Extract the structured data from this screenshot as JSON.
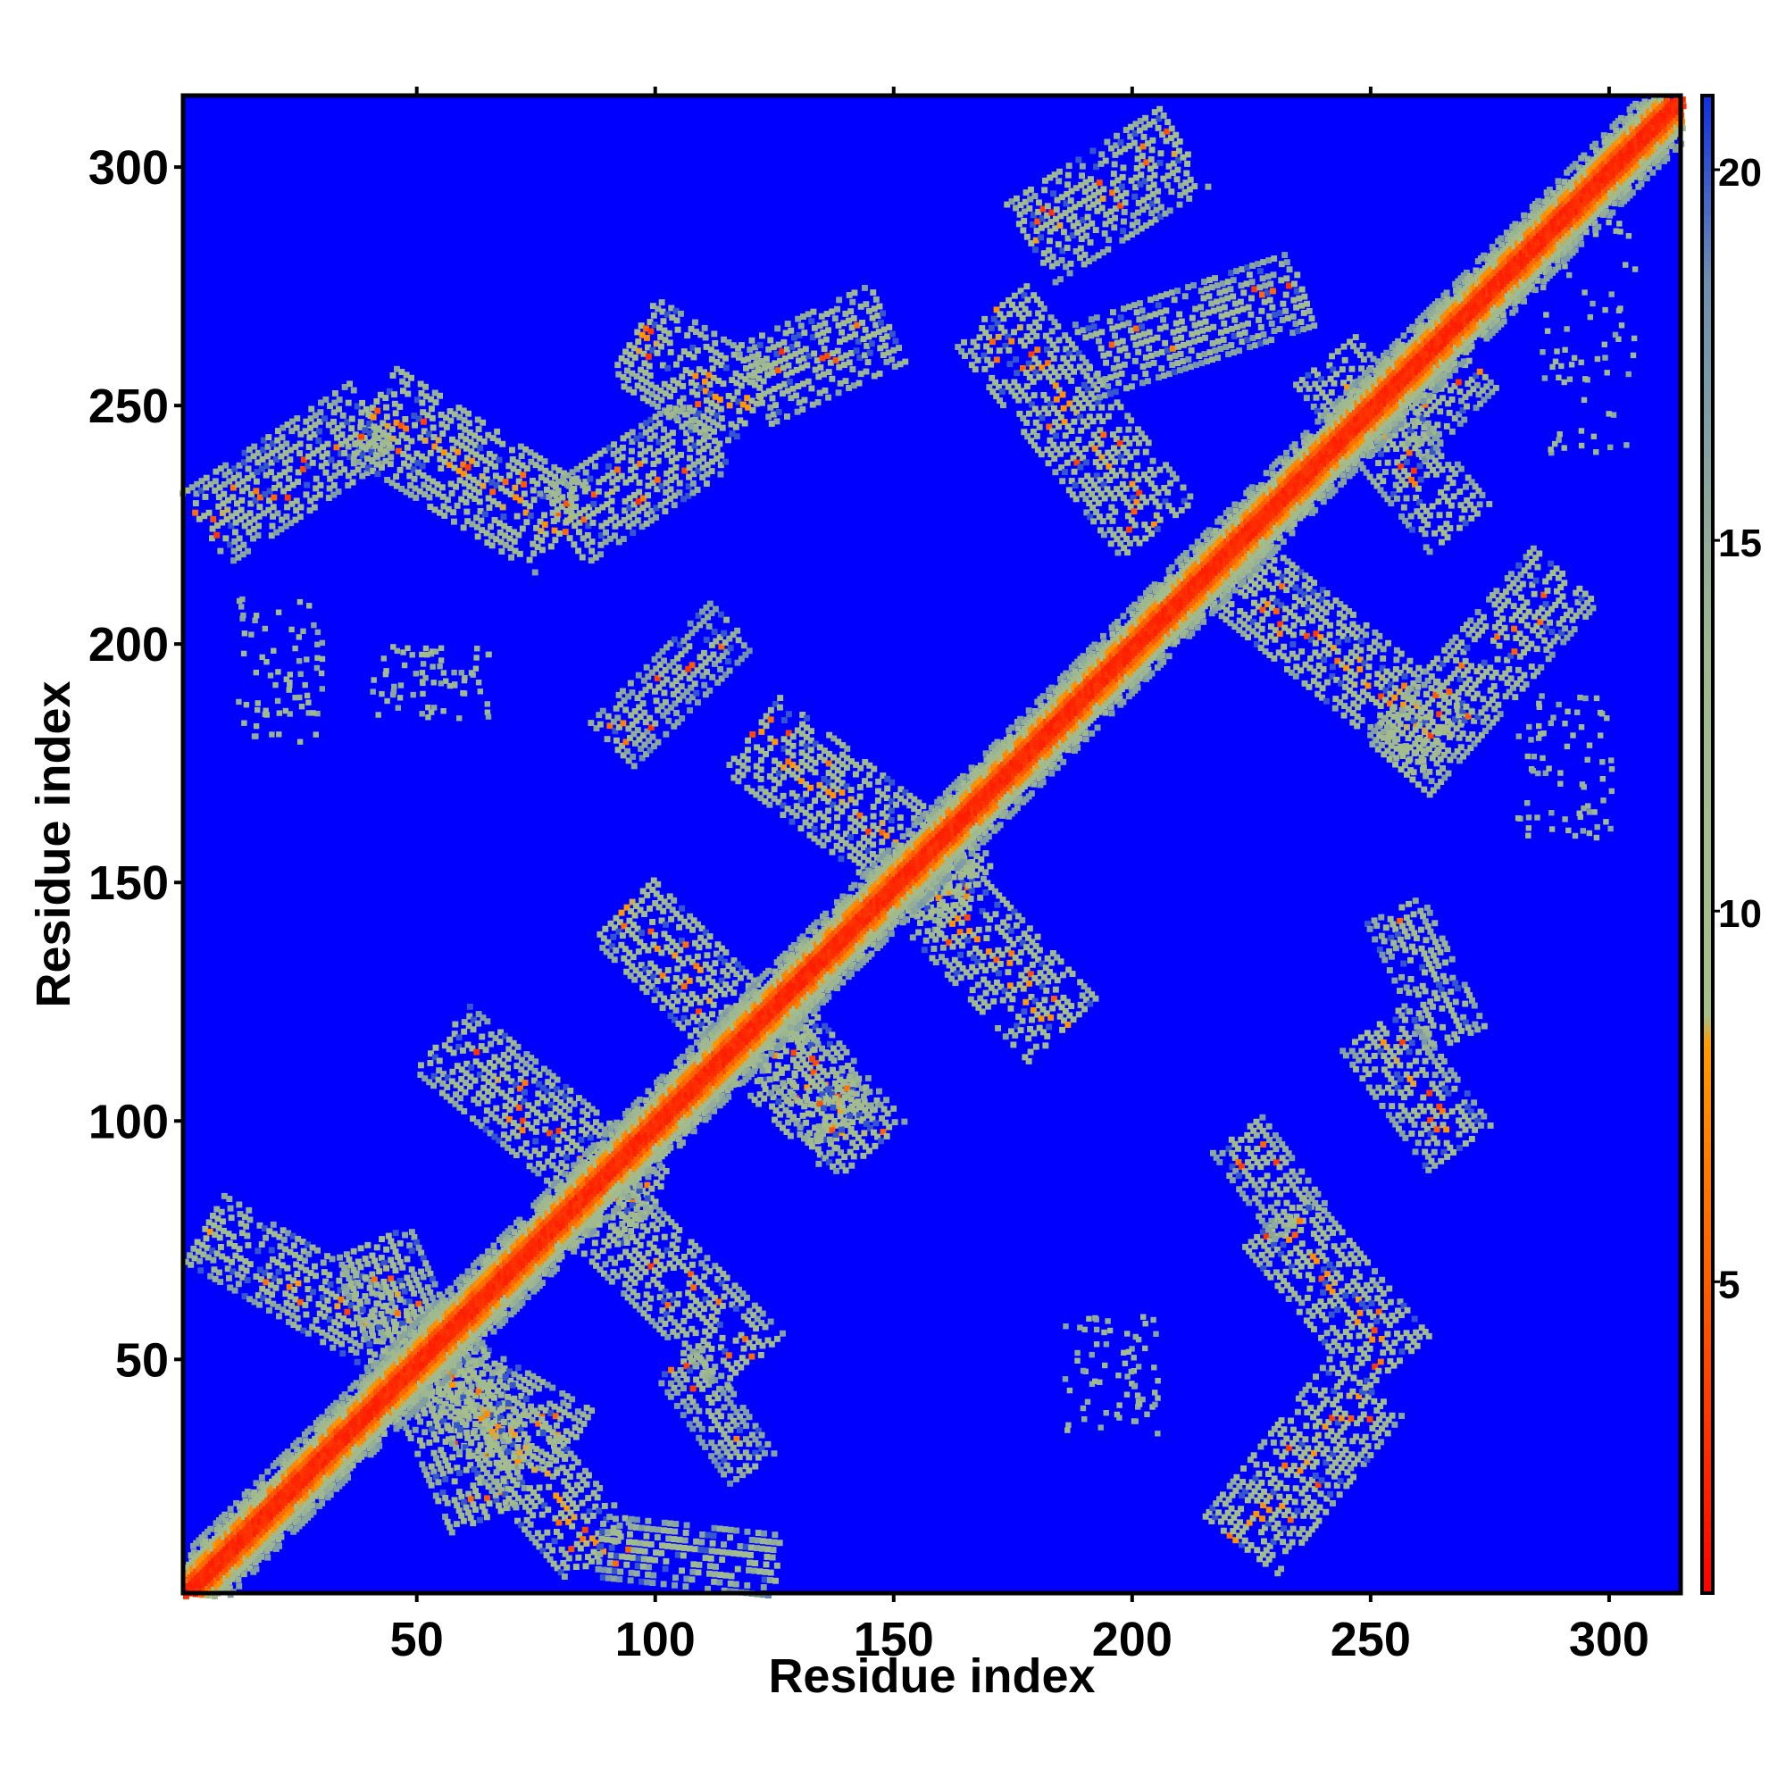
{
  "chart_data": {
    "type": "heatmap",
    "title": "",
    "xlabel": "Residue index",
    "ylabel": "Residue index",
    "xlim": [
      1,
      315
    ],
    "ylim": [
      1,
      315
    ],
    "x_ticks": [
      50,
      100,
      150,
      200,
      250,
      300
    ],
    "y_ticks": [
      50,
      100,
      150,
      200,
      250,
      300
    ],
    "colorbar": {
      "range": [
        0.8,
        21
      ],
      "ticks": [
        5,
        10,
        15,
        20
      ],
      "colors": {
        "low": "#ff0000",
        "mid_low": "#ff9900",
        "mid": "#a6c08a",
        "high": "#6f8fb0",
        "background": "#0000ff"
      }
    },
    "features": {
      "diagonal": {
        "from": 1,
        "to": 315,
        "value": 2
      },
      "contact_bands": [
        {
          "start": [
            5,
            78
          ],
          "end": [
            82,
            33
          ],
          "width": 16,
          "value": 10
        },
        {
          "start": [
            40,
            75
          ],
          "end": [
            65,
            18
          ],
          "width": 18,
          "value": 10
        },
        {
          "start": [
            50,
            55
          ],
          "end": [
            88,
            10
          ],
          "width": 18,
          "value": 9
        },
        {
          "start": [
            88,
            12
          ],
          "end": [
            125,
            8
          ],
          "width": 14,
          "value": 12
        },
        {
          "start": [
            105,
            50
          ],
          "end": [
            120,
            28
          ],
          "width": 12,
          "value": 12
        },
        {
          "start": [
            55,
            118
          ],
          "end": [
            98,
            82
          ],
          "width": 18,
          "value": 10
        },
        {
          "start": [
            85,
            85
          ],
          "end": [
            120,
            50
          ],
          "width": 18,
          "value": 10
        },
        {
          "start": [
            93,
            145
          ],
          "end": [
            140,
            98
          ],
          "width": 18,
          "value": 9
        },
        {
          "start": [
            120,
            125
          ],
          "end": [
            145,
            95
          ],
          "width": 18,
          "value": 10
        },
        {
          "start": [
            120,
            182
          ],
          "end": [
            165,
            148
          ],
          "width": 20,
          "value": 9
        },
        {
          "start": [
            155,
            152
          ],
          "end": [
            185,
            120
          ],
          "width": 20,
          "value": 9
        },
        {
          "start": [
            90,
            180
          ],
          "end": [
            115,
            205
          ],
          "width": 14,
          "value": 12
        },
        {
          "start": [
            5,
            225
          ],
          "end": [
            40,
            248
          ],
          "width": 18,
          "value": 10
        },
        {
          "start": [
            40,
            250
          ],
          "end": [
            80,
            225
          ],
          "width": 22,
          "value": 9
        },
        {
          "start": [
            80,
            225
          ],
          "end": [
            110,
            245
          ],
          "width": 18,
          "value": 10
        },
        {
          "start": [
            95,
            265
          ],
          "end": [
            120,
            250
          ],
          "width": 20,
          "value": 9
        },
        {
          "start": [
            120,
            255
          ],
          "end": [
            148,
            268
          ],
          "width": 18,
          "value": 10
        },
        {
          "start": [
            170,
            270
          ],
          "end": [
            205,
            225
          ],
          "width": 20,
          "value": 9
        },
        {
          "start": [
            178,
            285
          ],
          "end": [
            210,
            305
          ],
          "width": 20,
          "value": 10
        },
        {
          "start": [
            190,
            260
          ],
          "end": [
            235,
            275
          ],
          "width": 16,
          "value": 11
        },
        {
          "start": [
            222,
            215
          ],
          "end": [
            265,
            180
          ],
          "width": 18,
          "value": 9
        },
        {
          "start": [
            255,
            175
          ],
          "end": [
            290,
            215
          ],
          "width": 18,
          "value": 10
        },
        {
          "start": [
            240,
            260
          ],
          "end": [
            268,
            225
          ],
          "width": 16,
          "value": 10
        },
        {
          "start": [
            255,
            245
          ],
          "end": [
            270,
            260
          ],
          "width": 16,
          "value": 11
        },
        {
          "start": [
            230,
            80
          ],
          "end": [
            255,
            50
          ],
          "width": 18,
          "value": 9
        },
        {
          "start": [
            222,
            12
          ],
          "end": [
            248,
            45
          ],
          "width": 20,
          "value": 9
        },
        {
          "start": [
            250,
            120
          ],
          "end": [
            268,
            95
          ],
          "width": 16,
          "value": 10
        },
        {
          "start": [
            255,
            145
          ],
          "end": [
            268,
            118
          ],
          "width": 14,
          "value": 11
        },
        {
          "start": [
            222,
            98
          ],
          "end": [
            235,
            80
          ],
          "width": 14,
          "value": 11
        }
      ],
      "sparse_regions": [
        {
          "x": [
            185,
            205
          ],
          "y": [
            35,
            60
          ]
        },
        {
          "x": [
            12,
            30
          ],
          "y": [
            180,
            210
          ]
        },
        {
          "x": [
            40,
            65
          ],
          "y": [
            185,
            200
          ]
        },
        {
          "x": [
            280,
            300
          ],
          "y": [
            160,
            190
          ]
        },
        {
          "x": [
            285,
            305
          ],
          "y": [
            240,
            290
          ]
        }
      ]
    }
  }
}
